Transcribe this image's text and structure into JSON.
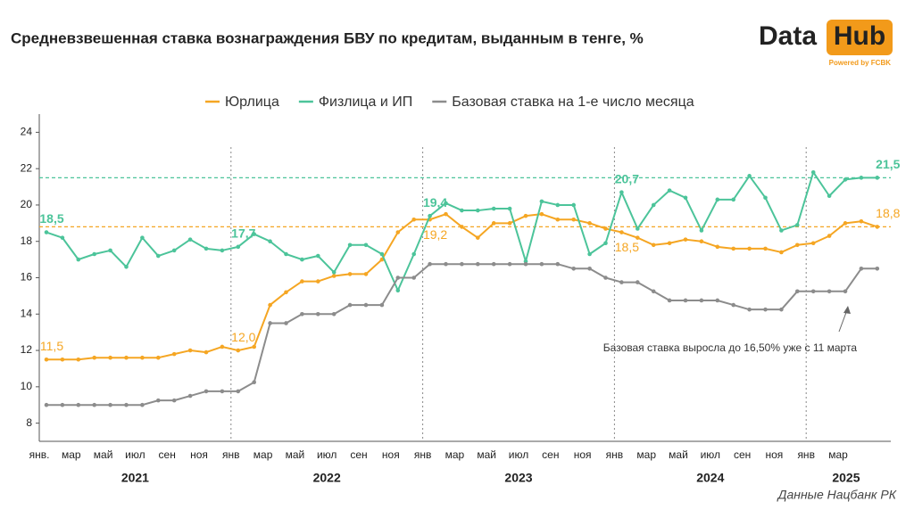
{
  "chart_data": {
    "type": "line",
    "title": "Средневзвешенная ставка вознаграждения БВУ по кредитам, выданным в тенге, %",
    "logo": {
      "text1": "Data",
      "text2": "Hub",
      "tagline": "Powered by FCBK"
    },
    "source": "Данные Нацбанк РК",
    "annotation": "Базовая ставка выросла до 16,50% уже с 11 марта",
    "years": [
      "2021",
      "2022",
      "2023",
      "2024",
      "2025"
    ],
    "categories": [
      "янв.",
      null,
      "мар",
      null,
      "май",
      null,
      "июл",
      null,
      "сен",
      null,
      "ноя",
      null,
      "янв",
      null,
      "мар",
      null,
      "май",
      null,
      "июл",
      null,
      "сен",
      null,
      "ноя",
      null,
      "янв",
      null,
      "мар",
      null,
      "май",
      null,
      "июл",
      null,
      "сен",
      null,
      "ноя",
      null,
      "янв",
      null,
      "мар",
      null,
      "май",
      null,
      "июл",
      null,
      "сен",
      null,
      "ноя",
      null,
      "янв",
      null,
      "мар",
      null,
      null
    ],
    "ylim": [
      7,
      25
    ],
    "yticks": [
      8,
      10,
      12,
      14,
      16,
      18,
      20,
      22,
      24
    ],
    "hlines": [
      {
        "value": 18.8,
        "color": "#f5a623"
      },
      {
        "value": 21.5,
        "color": "#4cc49a"
      }
    ],
    "series": [
      {
        "name": "Юрлица",
        "color": "#f5a623",
        "values": [
          11.5,
          11.5,
          11.5,
          11.6,
          11.6,
          11.6,
          11.6,
          11.6,
          11.8,
          12.0,
          11.9,
          12.2,
          12.0,
          12.2,
          14.5,
          15.2,
          15.8,
          15.8,
          16.1,
          16.2,
          16.2,
          17.0,
          18.5,
          19.2,
          19.2,
          19.5,
          18.8,
          18.2,
          19.0,
          19.0,
          19.4,
          19.5,
          19.2,
          19.2,
          19.0,
          18.7,
          18.5,
          18.2,
          17.8,
          17.9,
          18.1,
          18.0,
          17.7,
          17.6,
          17.6,
          17.6,
          17.4,
          17.8,
          17.9,
          18.3,
          19.0,
          19.1,
          18.8
        ],
        "value_labels": [
          "11,5",
          null,
          null,
          null,
          null,
          null,
          null,
          null,
          null,
          null,
          null,
          null,
          "12,0",
          null,
          null,
          null,
          null,
          null,
          null,
          null,
          null,
          null,
          null,
          null,
          "19,2",
          null,
          null,
          null,
          null,
          null,
          null,
          null,
          null,
          null,
          null,
          null,
          "18,5",
          null,
          null,
          null,
          null,
          null,
          null,
          null,
          null,
          null,
          null,
          null,
          null,
          null,
          null,
          null,
          "18,8"
        ]
      },
      {
        "name": "Физлица и ИП",
        "color": "#4cc49a",
        "values": [
          18.5,
          18.2,
          17.0,
          17.3,
          17.5,
          16.6,
          18.2,
          17.2,
          17.5,
          18.1,
          17.6,
          17.5,
          17.7,
          18.4,
          18.0,
          17.3,
          17.0,
          17.2,
          16.3,
          17.8,
          17.8,
          17.3,
          15.3,
          17.3,
          19.4,
          20.1,
          19.7,
          19.7,
          19.8,
          19.8,
          16.9,
          20.2,
          20.0,
          20.0,
          17.3,
          17.9,
          20.7,
          18.7,
          20.0,
          20.8,
          20.4,
          18.6,
          20.3,
          20.3,
          21.6,
          20.4,
          18.6,
          18.9,
          21.8,
          20.5,
          21.4,
          21.5,
          21.5
        ],
        "value_labels": [
          "18,5",
          null,
          null,
          null,
          null,
          null,
          null,
          null,
          null,
          null,
          null,
          null,
          "17,7",
          null,
          null,
          null,
          null,
          null,
          null,
          null,
          null,
          null,
          null,
          null,
          "19,4",
          null,
          null,
          null,
          null,
          null,
          null,
          null,
          null,
          null,
          null,
          null,
          "20,7",
          null,
          null,
          null,
          null,
          null,
          null,
          null,
          null,
          null,
          null,
          null,
          null,
          null,
          null,
          null,
          "21,5"
        ]
      },
      {
        "name": "Базовая ставка на 1-е число месяца",
        "color": "#8c8c8c",
        "values": [
          9,
          9,
          9,
          9,
          9,
          9,
          9,
          9.25,
          9.25,
          9.5,
          9.75,
          9.75,
          9.75,
          10.25,
          13.5,
          13.5,
          14,
          14,
          14,
          14.5,
          14.5,
          14.5,
          16,
          16,
          16.75,
          16.75,
          16.75,
          16.75,
          16.75,
          16.75,
          16.75,
          16.75,
          16.75,
          16.5,
          16.5,
          16,
          15.75,
          15.75,
          15.25,
          14.75,
          14.75,
          14.75,
          14.75,
          14.5,
          14.25,
          14.25,
          14.25,
          15.25,
          15.25,
          15.25,
          15.25,
          16.5,
          16.5
        ]
      }
    ]
  }
}
